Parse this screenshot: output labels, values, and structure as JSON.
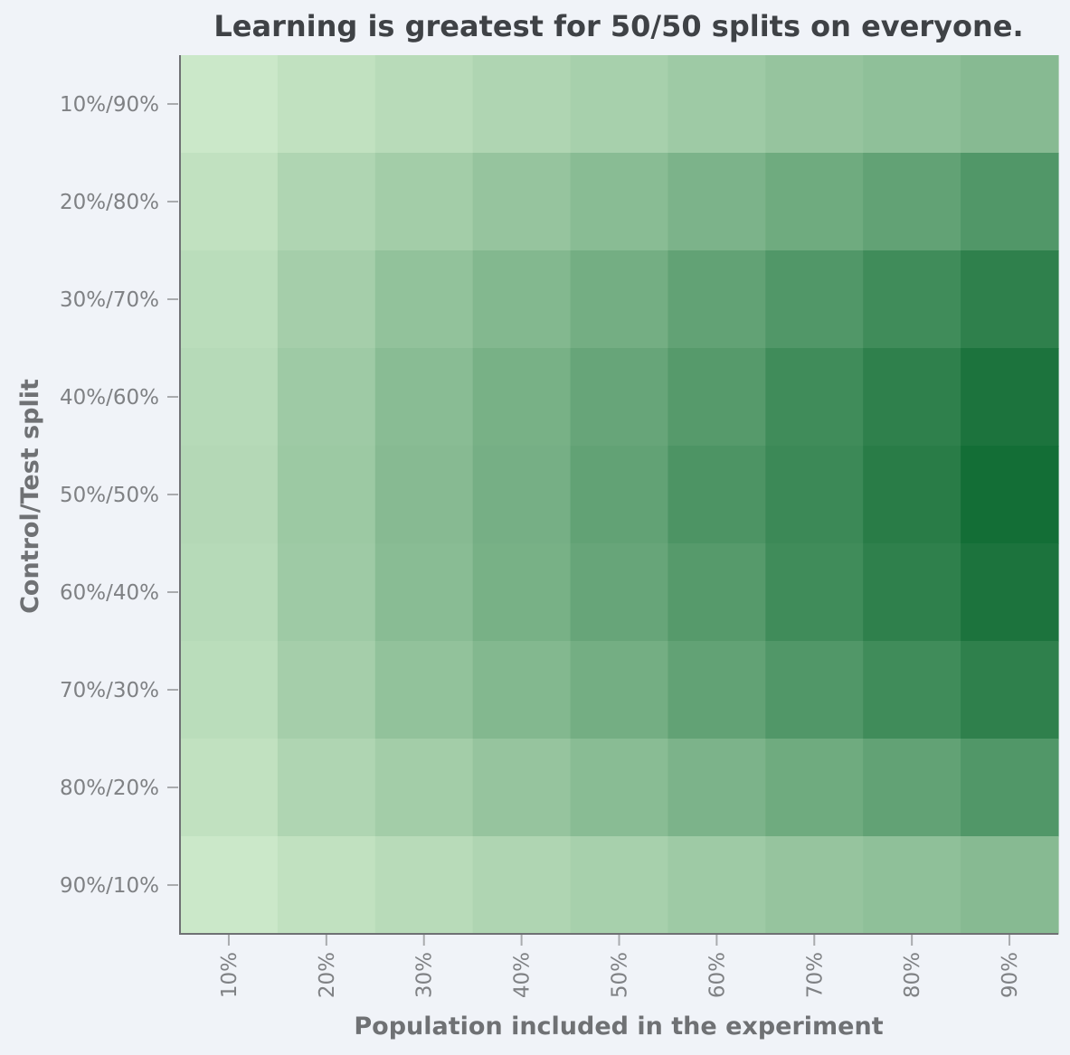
{
  "chart_data": {
    "type": "heatmap",
    "title": "Learning is greatest for 50/50 splits on everyone.",
    "xlabel": "Population included in the experiment",
    "ylabel": "Control/Test split",
    "x_categories": [
      "10%",
      "20%",
      "30%",
      "40%",
      "50%",
      "60%",
      "70%",
      "80%",
      "90%"
    ],
    "y_categories": [
      "10%/90%",
      "20%/80%",
      "30%/70%",
      "40%/60%",
      "50%/50%",
      "60%/40%",
      "70%/30%",
      "80%/20%",
      "90%/10%"
    ],
    "values": [
      [
        0.05,
        0.1,
        0.14,
        0.18,
        0.22,
        0.26,
        0.3,
        0.33,
        0.37
      ],
      [
        0.1,
        0.18,
        0.24,
        0.3,
        0.36,
        0.42,
        0.48,
        0.54,
        0.62
      ],
      [
        0.13,
        0.23,
        0.32,
        0.39,
        0.46,
        0.54,
        0.62,
        0.7,
        0.78
      ],
      [
        0.15,
        0.26,
        0.36,
        0.44,
        0.52,
        0.6,
        0.7,
        0.78,
        0.87
      ],
      [
        0.16,
        0.27,
        0.37,
        0.45,
        0.54,
        0.64,
        0.72,
        0.81,
        0.91
      ],
      [
        0.15,
        0.26,
        0.36,
        0.44,
        0.52,
        0.6,
        0.7,
        0.78,
        0.87
      ],
      [
        0.13,
        0.23,
        0.32,
        0.39,
        0.46,
        0.54,
        0.62,
        0.7,
        0.78
      ],
      [
        0.1,
        0.18,
        0.24,
        0.3,
        0.36,
        0.42,
        0.48,
        0.54,
        0.62
      ],
      [
        0.05,
        0.1,
        0.14,
        0.18,
        0.22,
        0.26,
        0.3,
        0.33,
        0.37
      ]
    ],
    "color_scale": [
      "#d6efd1",
      "#006127"
    ],
    "legend": "none",
    "grid": false
  }
}
